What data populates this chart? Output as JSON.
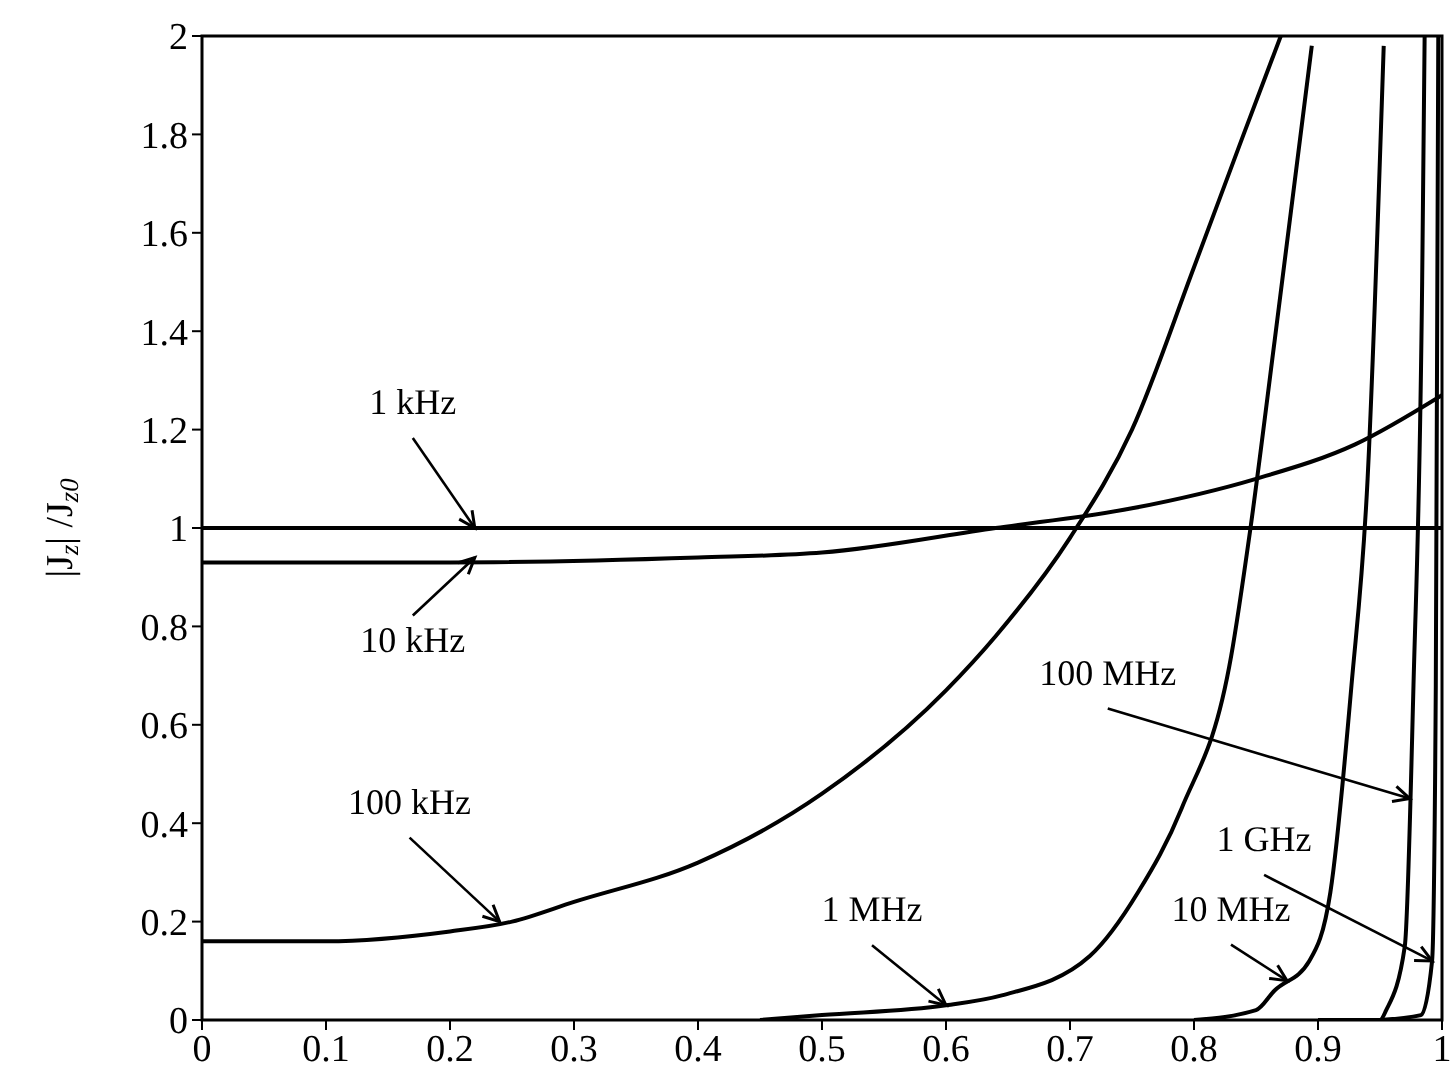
{
  "chart_data": {
    "type": "line",
    "ylabel": "|J$_{z}$| /J$_{z0}$",
    "xlim": [
      0,
      1
    ],
    "ylim": [
      0,
      2
    ],
    "xticks": [
      0,
      0.1,
      0.2,
      0.3,
      0.4,
      0.5,
      0.6,
      0.7,
      0.8,
      0.9,
      1
    ],
    "yticks": [
      0,
      0.2,
      0.4,
      0.6,
      0.8,
      1,
      1.2,
      1.4,
      1.6,
      1.8,
      2
    ],
    "grid": false,
    "marker": "none",
    "line_style": "solid",
    "series": [
      {
        "color": "#000000",
        "x": [
          0,
          0.5,
          1
        ],
        "values": [
          1,
          1,
          1
        ]
      },
      {
        "color": "#000000",
        "x": [
          0,
          0.2,
          0.4,
          0.5,
          0.64,
          0.75,
          0.85,
          0.93,
          1
        ],
        "values": [
          0.93,
          0.93,
          0.94,
          0.95,
          1,
          1.04,
          1.1,
          1.17,
          1.27
        ]
      },
      {
        "color": "#000000",
        "x": [
          0,
          0.1,
          0.2,
          0.25,
          0.3,
          0.4,
          0.5,
          0.6,
          0.64,
          0.7,
          0.75,
          0.8,
          0.84,
          0.87
        ],
        "values": [
          0.16,
          0.16,
          0.18,
          0.2,
          0.24,
          0.32,
          0.46,
          0.67,
          0.78,
          0.98,
          1.2,
          1.53,
          1.8,
          2
        ]
      },
      {
        "color": "#000000",
        "x": [
          0.45,
          0.5,
          0.6,
          0.645,
          0.716,
          0.755,
          0.79,
          0.83,
          0.845,
          0.865,
          0.895
        ],
        "values": [
          0,
          0.01,
          0.03,
          0.05,
          0.13,
          0.26,
          0.43,
          0.74,
          0.99,
          1.38,
          1.98
        ]
      },
      {
        "color": "#000000",
        "x": [
          0.8,
          0.85,
          0.865,
          0.893,
          0.91,
          0.927,
          0.94,
          0.953
        ],
        "values": [
          0,
          0.02,
          0.06,
          0.12,
          0.26,
          0.68,
          1.1,
          1.98
        ]
      },
      {
        "color": "#000000",
        "x": [
          0.9,
          0.95,
          0.955,
          0.97,
          0.977,
          0.984,
          0.986
        ],
        "values": [
          0,
          0,
          0.02,
          0.15,
          0.68,
          1.5,
          2
        ]
      },
      {
        "color": "#000000",
        "x": [
          0.95,
          0.983,
          0.992,
          0.995,
          0.997
        ],
        "values": [
          0,
          0.01,
          0.12,
          0.68,
          2
        ]
      }
    ],
    "annotations": [
      {
        "text": "1 kHz",
        "x": 0.22,
        "y": 1.0
      },
      {
        "text": "10 kHz",
        "x": 0.22,
        "y": 0.94
      },
      {
        "text": "100 kHz",
        "x": 0.24,
        "y": 0.2
      },
      {
        "text": "1 MHz",
        "x": 0.6,
        "y": 0.03
      },
      {
        "text": "10 MHz",
        "x": 0.875,
        "y": 0.08
      },
      {
        "text": "100 MHz",
        "x": 0.974,
        "y": 0.45
      },
      {
        "text": "1 GHz",
        "x": 0.992,
        "y": 0.12
      }
    ]
  }
}
